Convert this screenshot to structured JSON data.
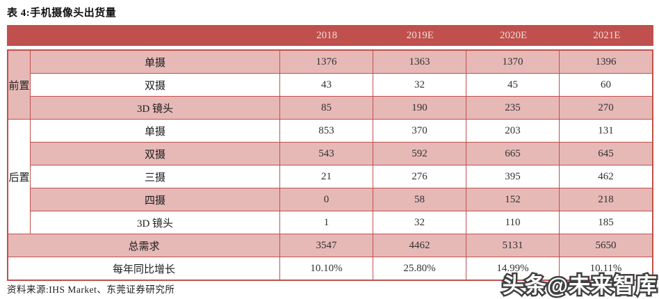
{
  "title": "表 4:手机摄像头出货量",
  "source": "资料来源:IHS Market、东莞证券研究所",
  "watermark": "头条@未来智库",
  "colors": {
    "accent_red": "#C0504D",
    "row_pink": "#E6B9B7",
    "header_text": "#F2DBDA",
    "body_text": "#303030"
  },
  "table": {
    "col_headers": [
      "2018",
      "2019E",
      "2020E",
      "2021E"
    ],
    "rows": [
      {
        "label": "单摄",
        "values": [
          "1376",
          "1363",
          "1370",
          "1396"
        ],
        "shade": "pink",
        "group": {
          "label": "前置",
          "span": 3,
          "shade": "pink"
        }
      },
      {
        "label": "双摄",
        "values": [
          "43",
          "32",
          "45",
          "60"
        ],
        "shade": "white"
      },
      {
        "label": "3D 镜头",
        "values": [
          "85",
          "190",
          "235",
          "270"
        ],
        "shade": "pink"
      },
      {
        "label": "单摄",
        "values": [
          "853",
          "370",
          "203",
          "131"
        ],
        "shade": "white",
        "group": {
          "label": "后置",
          "span": 5,
          "shade": "white"
        }
      },
      {
        "label": "双摄",
        "values": [
          "543",
          "592",
          "665",
          "645"
        ],
        "shade": "pink"
      },
      {
        "label": "三摄",
        "values": [
          "21",
          "276",
          "395",
          "462"
        ],
        "shade": "white"
      },
      {
        "label": "四摄",
        "values": [
          "0",
          "58",
          "152",
          "218"
        ],
        "shade": "pink"
      },
      {
        "label": "3D 镜头",
        "values": [
          "1",
          "32",
          "110",
          "185"
        ],
        "shade": "white"
      },
      {
        "label": "总需求",
        "values": [
          "3547",
          "4462",
          "5131",
          "5650"
        ],
        "shade": "pink",
        "full_span": true
      },
      {
        "label": "每年同比增长",
        "values": [
          "10.10%",
          "25.80%",
          "14.99%",
          "10.11%"
        ],
        "shade": "white",
        "full_span": true
      }
    ]
  },
  "chart_data": {
    "type": "table",
    "title": "手机摄像头出货量",
    "columns": [
      "2018",
      "2019E",
      "2020E",
      "2021E"
    ],
    "rows": [
      {
        "group": "前置",
        "item": "单摄",
        "values": [
          1376,
          1363,
          1370,
          1396
        ]
      },
      {
        "group": "前置",
        "item": "双摄",
        "values": [
          43,
          32,
          45,
          60
        ]
      },
      {
        "group": "前置",
        "item": "3D 镜头",
        "values": [
          85,
          190,
          235,
          270
        ]
      },
      {
        "group": "后置",
        "item": "单摄",
        "values": [
          853,
          370,
          203,
          131
        ]
      },
      {
        "group": "后置",
        "item": "双摄",
        "values": [
          543,
          592,
          665,
          645
        ]
      },
      {
        "group": "后置",
        "item": "三摄",
        "values": [
          21,
          276,
          395,
          462
        ]
      },
      {
        "group": "后置",
        "item": "四摄",
        "values": [
          0,
          58,
          152,
          218
        ]
      },
      {
        "group": "后置",
        "item": "3D 镜头",
        "values": [
          1,
          32,
          110,
          185
        ]
      },
      {
        "group": null,
        "item": "总需求",
        "values": [
          3547,
          4462,
          5131,
          5650
        ]
      },
      {
        "group": null,
        "item": "每年同比增长",
        "values": [
          "10.10%",
          "25.80%",
          "14.99%",
          "10.11%"
        ]
      }
    ]
  }
}
